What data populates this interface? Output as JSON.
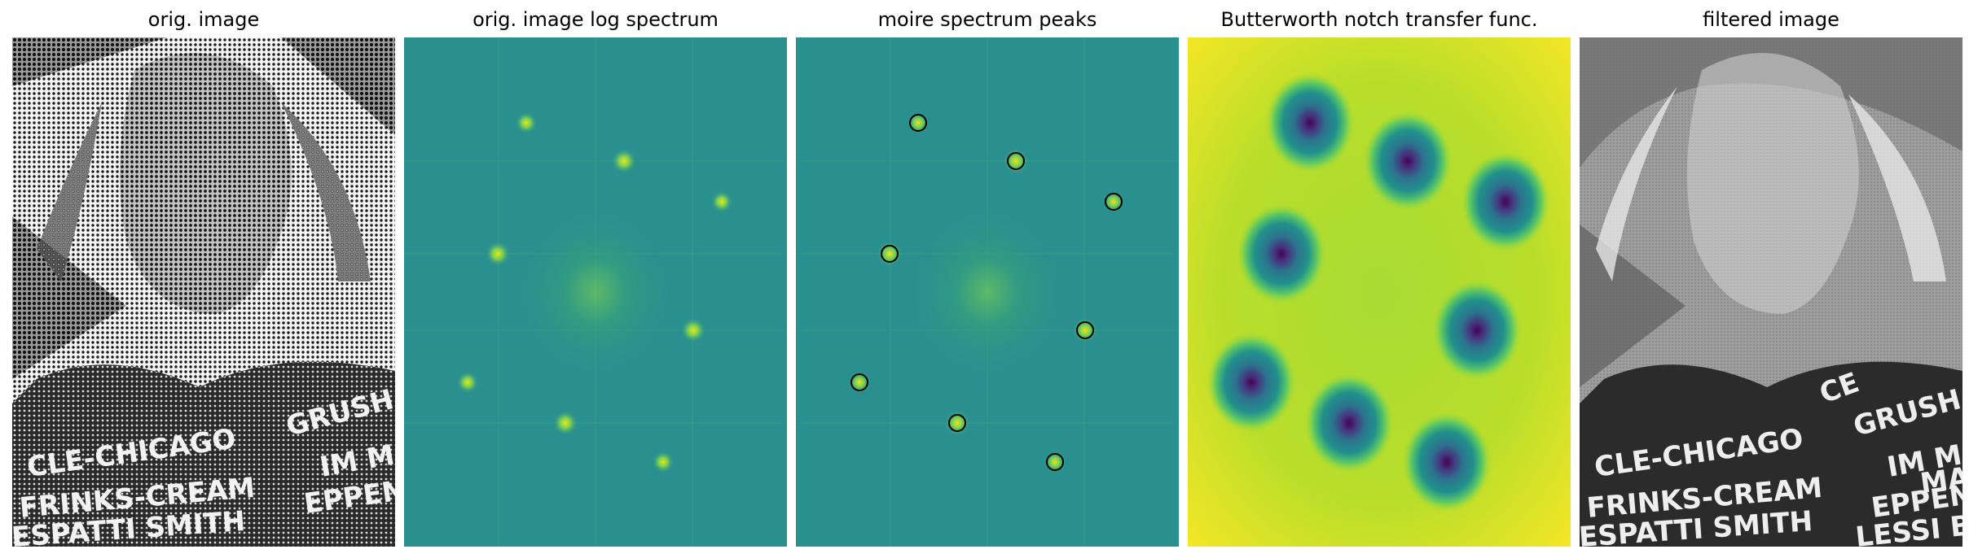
{
  "figure": {
    "panels": [
      {
        "title": "orig. image"
      },
      {
        "title": "orig. image log spectrum"
      },
      {
        "title": "moire spectrum peaks"
      },
      {
        "title": "Butterworth notch transfer func."
      },
      {
        "title": "filtered image"
      }
    ]
  },
  "photo_text": {
    "lines": [
      "CLE-CHICAGO",
      "FRINKS-CREAM",
      "ESPATTI SMITH",
      "CE",
      "GRUSH",
      "IM MO",
      "MA",
      "EPPEN",
      "LESSI B"
    ]
  },
  "colors": {
    "spectrum_bg": "#2a8f8f",
    "notch_high": "#f0e51c",
    "notch_mid": "#9ed93a",
    "notch_low": "#440154",
    "marker_stroke": "#000000"
  }
}
